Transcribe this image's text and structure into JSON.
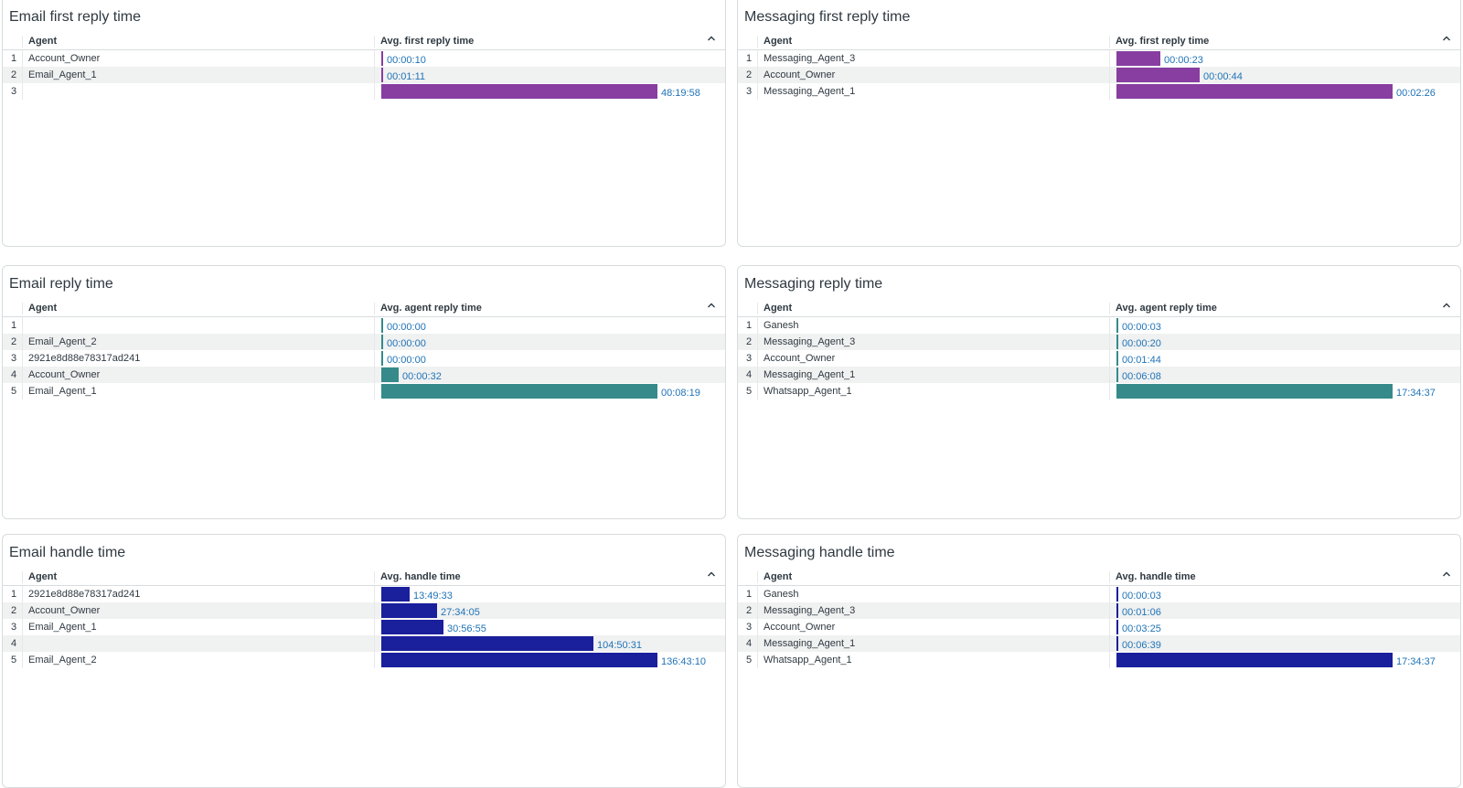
{
  "colors": {
    "purple": "#873ea0",
    "teal": "#368a8a",
    "navy": "#1a1f9c",
    "value_text": "#1f73b7"
  },
  "sort_icon": "chevron-up-icon",
  "panels": [
    {
      "title": "Email first reply time",
      "col_agent": "Agent",
      "col_metric": "Avg. first reply time",
      "color": "#873ea0",
      "rows": [
        {
          "n": "1",
          "agent": "Account_Owner",
          "value": "00:00:10",
          "fraction": 0.002
        },
        {
          "n": "2",
          "agent": "Email_Agent_1",
          "value": "00:01:11",
          "fraction": 0.006
        },
        {
          "n": "3",
          "agent": "",
          "value": "48:19:58",
          "fraction": 1.0
        }
      ]
    },
    {
      "title": "Messaging first reply time",
      "col_agent": "Agent",
      "col_metric": "Avg. first reply time",
      "color": "#873ea0",
      "rows": [
        {
          "n": "1",
          "agent": "Messaging_Agent_3",
          "value": "00:00:23",
          "fraction": 0.158
        },
        {
          "n": "2",
          "agent": "Account_Owner",
          "value": "00:00:44",
          "fraction": 0.301
        },
        {
          "n": "3",
          "agent": "Messaging_Agent_1",
          "value": "00:02:26",
          "fraction": 1.0
        }
      ]
    },
    {
      "title": "Email reply time",
      "col_agent": "Agent",
      "col_metric": "Avg. agent reply time",
      "color": "#368a8a",
      "rows": [
        {
          "n": "1",
          "agent": "",
          "value": "00:00:00",
          "fraction": 0.004
        },
        {
          "n": "2",
          "agent": "Email_Agent_2",
          "value": "00:00:00",
          "fraction": 0.004
        },
        {
          "n": "3",
          "agent": "2921e8d88e78317ad241",
          "value": "00:00:00",
          "fraction": 0.004
        },
        {
          "n": "4",
          "agent": "Account_Owner",
          "value": "00:00:32",
          "fraction": 0.064
        },
        {
          "n": "5",
          "agent": "Email_Agent_1",
          "value": "00:08:19",
          "fraction": 1.0
        }
      ]
    },
    {
      "title": "Messaging reply time",
      "col_agent": "Agent",
      "col_metric": "Avg. agent reply time",
      "color": "#368a8a",
      "rows": [
        {
          "n": "1",
          "agent": "Ganesh",
          "value": "00:00:03",
          "fraction": 0.003
        },
        {
          "n": "2",
          "agent": "Messaging_Agent_3",
          "value": "00:00:20",
          "fraction": 0.003
        },
        {
          "n": "3",
          "agent": "Account_Owner",
          "value": "00:01:44",
          "fraction": 0.003
        },
        {
          "n": "4",
          "agent": "Messaging_Agent_1",
          "value": "00:06:08",
          "fraction": 0.006
        },
        {
          "n": "5",
          "agent": "Whatsapp_Agent_1",
          "value": "17:34:37",
          "fraction": 1.0
        }
      ]
    },
    {
      "title": "Email handle time",
      "col_agent": "Agent",
      "col_metric": "Avg. handle time",
      "color": "#1a1f9c",
      "rows": [
        {
          "n": "1",
          "agent": "2921e8d88e78317ad241",
          "value": "13:49:33",
          "fraction": 0.101
        },
        {
          "n": "2",
          "agent": "Account_Owner",
          "value": "27:34:05",
          "fraction": 0.202
        },
        {
          "n": "3",
          "agent": "Email_Agent_1",
          "value": "30:56:55",
          "fraction": 0.226
        },
        {
          "n": "4",
          "agent": "",
          "value": "104:50:31",
          "fraction": 0.767
        },
        {
          "n": "5",
          "agent": "Email_Agent_2",
          "value": "136:43:10",
          "fraction": 1.0
        }
      ]
    },
    {
      "title": "Messaging handle time",
      "col_agent": "Agent",
      "col_metric": "Avg. handle time",
      "color": "#1a1f9c",
      "rows": [
        {
          "n": "1",
          "agent": "Ganesh",
          "value": "00:00:03",
          "fraction": 0.003
        },
        {
          "n": "2",
          "agent": "Messaging_Agent_3",
          "value": "00:01:06",
          "fraction": 0.003
        },
        {
          "n": "3",
          "agent": "Account_Owner",
          "value": "00:03:25",
          "fraction": 0.003
        },
        {
          "n": "4",
          "agent": "Messaging_Agent_1",
          "value": "00:06:39",
          "fraction": 0.006
        },
        {
          "n": "5",
          "agent": "Whatsapp_Agent_1",
          "value": "17:34:37",
          "fraction": 1.0
        }
      ]
    }
  ]
}
